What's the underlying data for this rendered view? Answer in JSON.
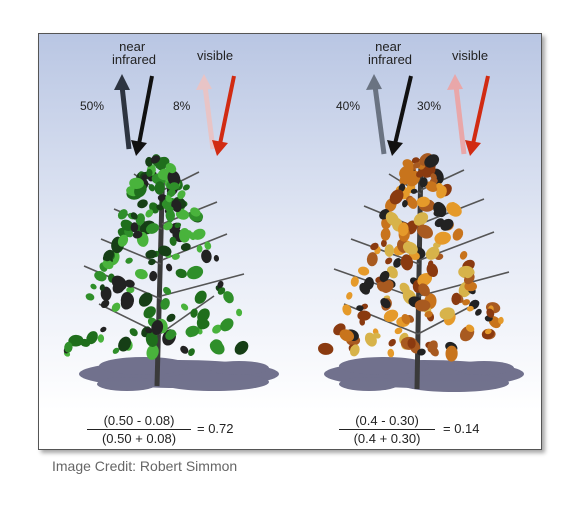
{
  "left": {
    "nir_label": "near\ninfrared",
    "vis_label": "visible",
    "nir_pct": "50%",
    "vis_pct": "8%",
    "formula": {
      "numerator": "(0.50 - 0.08)",
      "denominator": "(0.50 + 0.08)",
      "result": "= 0.72"
    }
  },
  "right": {
    "nir_label": "near\ninfrared",
    "vis_label": "visible",
    "nir_pct": "40%",
    "vis_pct": "30%",
    "formula": {
      "numerator": "(0.4 - 0.30)",
      "denominator": "(0.4 + 0.30)",
      "result": "= 0.14"
    }
  },
  "credit": "Image Credit: Robert Simmon",
  "colors": {
    "sky_top": "#b9c6e3",
    "sky_bottom": "#ffffff",
    "healthy_leaf": "#2f8f2a",
    "stressed_leaf": "#c8741c",
    "visible_arrow": "#d12b12",
    "nir_arrow": "#111111",
    "shadow": "#5a5a7a"
  }
}
